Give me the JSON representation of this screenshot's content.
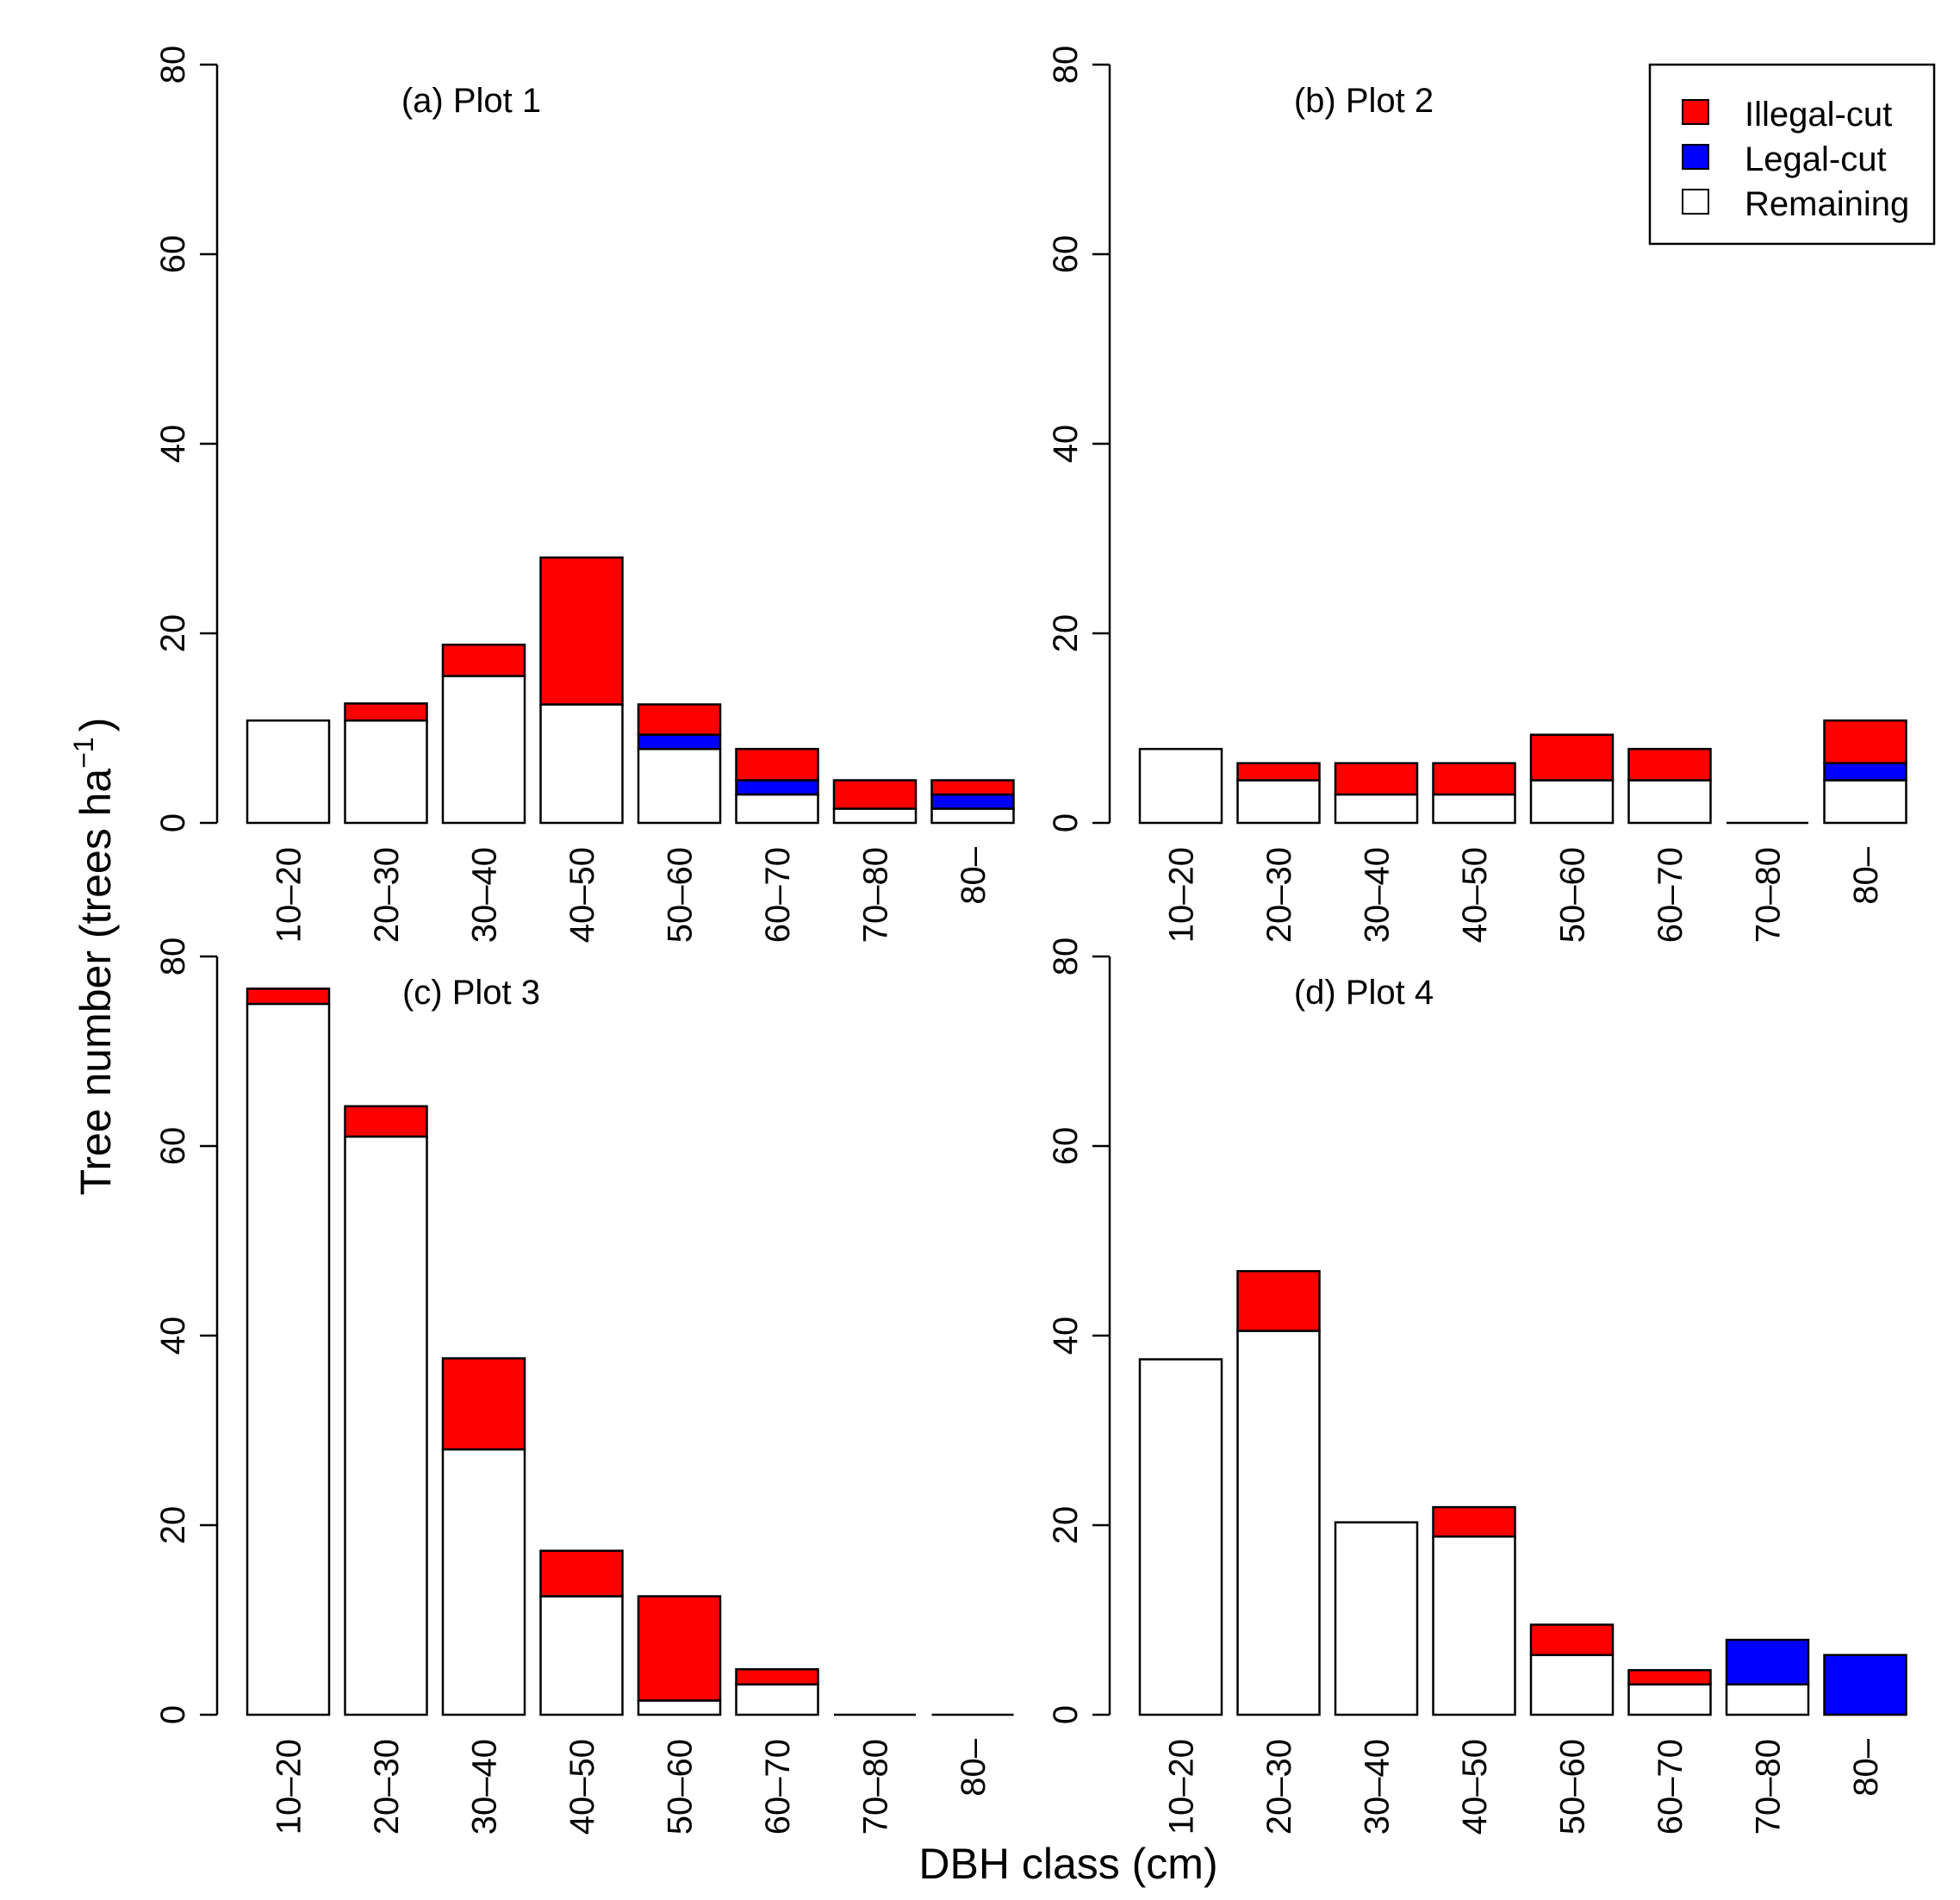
{
  "chart_data": {
    "type": "bar",
    "stacked": true,
    "ylabel": "Tree number (trees ha",
    "ylabel_superscript": "−1",
    "ylabel_close": ")",
    "xlabel": "DBH class (cm)",
    "ylim": [
      0,
      80
    ],
    "yticks": [
      "0",
      "20",
      "40",
      "60",
      "80"
    ],
    "grid": false,
    "legend": {
      "placement": "top-right",
      "entries": [
        {
          "label": "Illegal-cut",
          "color": "#ff0000"
        },
        {
          "label": "Legal-cut",
          "color": "#0000ff"
        },
        {
          "label": "Remaining",
          "color": "#ffffff"
        }
      ]
    },
    "stack_order": [
      "Remaining",
      "Legal-cut",
      "Illegal-cut"
    ],
    "categories": [
      "10–20",
      "20–30",
      "30–40",
      "40–50",
      "50–60",
      "60–70",
      "70–80",
      "80–"
    ],
    "panels": [
      {
        "title": "(a) Plot 1",
        "series": [
          {
            "name": "Remaining",
            "values": [
              10.8,
              10.8,
              15.5,
              12.5,
              7.8,
              3.0,
              1.5,
              1.5
            ]
          },
          {
            "name": "Legal-cut",
            "values": [
              0,
              0,
              0,
              0,
              1.5,
              1.5,
              0,
              1.5
            ]
          },
          {
            "name": "Illegal-cut",
            "values": [
              0,
              1.8,
              3.3,
              15.5,
              3.2,
              3.3,
              3.0,
              1.5
            ]
          }
        ]
      },
      {
        "title": "(b) Plot 2",
        "series": [
          {
            "name": "Remaining",
            "values": [
              7.8,
              4.5,
              3.0,
              3.0,
              4.5,
              4.5,
              0,
              4.5
            ]
          },
          {
            "name": "Legal-cut",
            "values": [
              0,
              0,
              0,
              0,
              0,
              0,
              0,
              1.8
            ]
          },
          {
            "name": "Illegal-cut",
            "values": [
              0,
              1.8,
              3.3,
              3.3,
              4.8,
              3.3,
              0,
              4.5
            ]
          }
        ]
      },
      {
        "title": "(c) Plot 3",
        "series": [
          {
            "name": "Remaining",
            "values": [
              75.0,
              61.0,
              28.0,
              12.5,
              1.5,
              3.2,
              0,
              0
            ]
          },
          {
            "name": "Legal-cut",
            "values": [
              0,
              0,
              0,
              0,
              0,
              0,
              0,
              0
            ]
          },
          {
            "name": "Illegal-cut",
            "values": [
              1.6,
              3.2,
              9.6,
              4.8,
              11.0,
              1.6,
              0,
              0
            ]
          }
        ]
      },
      {
        "title": "(d) Plot 4",
        "series": [
          {
            "name": "Remaining",
            "values": [
              37.5,
              40.5,
              20.3,
              18.8,
              6.3,
              3.2,
              3.2,
              0
            ]
          },
          {
            "name": "Legal-cut",
            "values": [
              0,
              0,
              0,
              0,
              0,
              0,
              4.7,
              6.3
            ]
          },
          {
            "name": "Illegal-cut",
            "values": [
              0,
              6.3,
              0,
              3.1,
              3.2,
              1.5,
              0,
              0
            ]
          }
        ]
      }
    ]
  }
}
